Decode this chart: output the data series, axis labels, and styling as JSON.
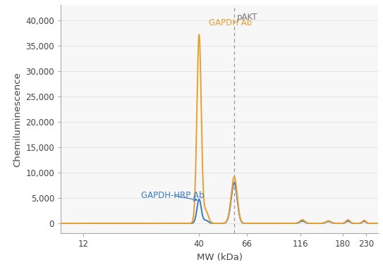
{
  "xlabel": "MW (kDa)",
  "ylabel": "Chemiluminescence",
  "x_ticks": [
    12,
    40,
    66,
    116,
    180,
    230
  ],
  "ylim": [
    -2000,
    43000
  ],
  "yticks": [
    0,
    5000,
    10000,
    15000,
    20000,
    25000,
    30000,
    35000,
    40000
  ],
  "color_orange": "#E8A030",
  "color_blue": "#3B7BBD",
  "dashed_line_x": 58,
  "pakt_label": "pAKT",
  "gapdh_ab_label": "GAPDH Ab",
  "gapdh_hrp_label": "GAPDH-HRP Ab",
  "bg_color": "#f0f0f0",
  "spine_color": "#aaaaaa",
  "tick_color": "#aaaaaa",
  "label_color": "#555555"
}
